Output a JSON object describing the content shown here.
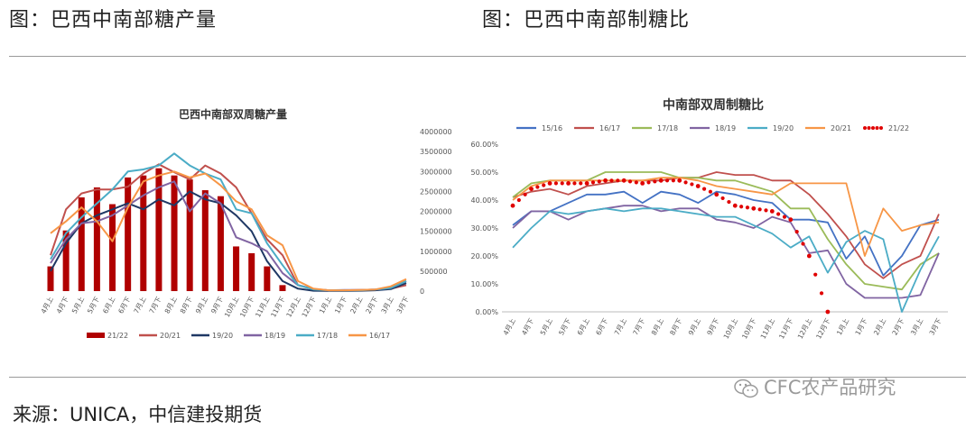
{
  "headings": {
    "left": "图：巴西中南部糖产量",
    "right": "图：巴西中南部制糖比"
  },
  "source": "来源：UNICA，中信建投期货",
  "watermark": "CFC农产品研究",
  "chart_data": [
    {
      "type": "bar+line",
      "title": "巴西中南部双周糖产量",
      "categories": [
        "4月上",
        "4月下",
        "5月上",
        "5月下",
        "6月上",
        "6月下",
        "7月上",
        "7月下",
        "8月上",
        "8月下",
        "9月上",
        "9月下",
        "10月上",
        "10月下",
        "11月上",
        "11月下",
        "12月上",
        "12月下",
        "1月上",
        "1月下",
        "2月上",
        "2月下",
        "3月上",
        "3月下"
      ],
      "yticks": [
        "0",
        "500000",
        "1000000",
        "1500000",
        "2000000",
        "2500000",
        "3000000",
        "3500000",
        "4000000"
      ],
      "ylim": [
        0,
        4000000
      ],
      "legend_position": "bottom",
      "bar_series": {
        "name": "21/22",
        "color": "#b00000",
        "values": [
          620000,
          1520000,
          2350000,
          2600000,
          2180000,
          2850000,
          2900000,
          3080000,
          2900000,
          2800000,
          2530000,
          2380000,
          1120000,
          950000,
          620000,
          150000,
          null,
          null,
          null,
          null,
          null,
          null,
          null,
          null
        ]
      },
      "series": [
        {
          "name": "20/21",
          "color": "#c0504d",
          "values": [
            900000,
            2050000,
            2450000,
            2550000,
            2550000,
            2620000,
            2950000,
            3180000,
            2980000,
            2800000,
            3150000,
            2950000,
            2600000,
            1950000,
            1300000,
            900000,
            150000,
            50000,
            20000,
            20000,
            30000,
            40000,
            60000,
            150000
          ]
        },
        {
          "name": "19/20",
          "color": "#1f3864",
          "values": [
            500000,
            1200000,
            1700000,
            1900000,
            2050000,
            2200000,
            2050000,
            2300000,
            2150000,
            2500000,
            2300000,
            2200000,
            1900000,
            1500000,
            750000,
            250000,
            60000,
            10000,
            5000,
            5000,
            10000,
            20000,
            50000,
            200000
          ]
        },
        {
          "name": "18/19",
          "color": "#8064a2",
          "values": [
            700000,
            1300000,
            1700000,
            1750000,
            1900000,
            2150000,
            2400000,
            2600000,
            2750000,
            2000000,
            2450000,
            2200000,
            1350000,
            1200000,
            1000000,
            450000,
            150000,
            50000,
            20000,
            30000,
            30000,
            40000,
            80000,
            250000
          ]
        },
        {
          "name": "17/18",
          "color": "#4bacc6",
          "values": [
            800000,
            1450000,
            1850000,
            2200000,
            2550000,
            3000000,
            3050000,
            3150000,
            3450000,
            3150000,
            2950000,
            2800000,
            2050000,
            1950000,
            1200000,
            650000,
            150000,
            40000,
            20000,
            20000,
            20000,
            40000,
            80000,
            250000
          ]
        },
        {
          "name": "16/17",
          "color": "#f79646",
          "values": [
            1450000,
            1750000,
            2100000,
            1750000,
            1250000,
            2100000,
            2750000,
            2900000,
            3000000,
            2850000,
            2950000,
            2650000,
            2250000,
            2050000,
            1400000,
            1150000,
            250000,
            60000,
            20000,
            20000,
            30000,
            40000,
            120000,
            300000
          ]
        }
      ]
    },
    {
      "type": "line",
      "title": "中南部双周制糖比",
      "categories": [
        "4月上",
        "4月下",
        "5月上",
        "5月下",
        "6月上",
        "6月下",
        "7月上",
        "7月下",
        "8月上",
        "8月下",
        "9月上",
        "9月下",
        "10月上",
        "10月下",
        "11月上",
        "11月下",
        "12月上",
        "12月下",
        "1月上",
        "1月下",
        "2月上",
        "2月下",
        "3月上",
        "3月下"
      ],
      "yticks": [
        "0.00%",
        "10.00%",
        "20.00%",
        "30.00%",
        "40.00%",
        "50.00%",
        "60.00%"
      ],
      "ylim": [
        0,
        60
      ],
      "legend_position": "top",
      "series": [
        {
          "name": "15/16",
          "color": "#4472c4",
          "values": [
            31,
            36,
            36,
            39,
            42,
            42,
            43,
            39,
            43,
            42,
            39,
            43,
            42,
            40,
            39,
            33,
            33,
            32,
            19,
            27,
            13,
            20,
            31,
            33
          ]
        },
        {
          "name": "16/17",
          "color": "#c0504d",
          "values": [
            41,
            43,
            44,
            42,
            45,
            46,
            47,
            47,
            47,
            48,
            48,
            50,
            49,
            49,
            47,
            47,
            42,
            35,
            27,
            17,
            12,
            17,
            20,
            35
          ]
        },
        {
          "name": "17/18",
          "color": "#9bbb59",
          "values": [
            41,
            46,
            47,
            47,
            47,
            50,
            50,
            50,
            50,
            48,
            48,
            47,
            47,
            45,
            43,
            37,
            37,
            26,
            17,
            10,
            9,
            8,
            17,
            21
          ]
        },
        {
          "name": "18/19",
          "color": "#8064a2",
          "values": [
            30,
            36,
            36,
            33,
            36,
            37,
            38,
            38,
            36,
            37,
            37,
            33,
            32,
            30,
            34,
            32,
            21,
            22,
            10,
            5,
            5,
            5,
            6,
            21
          ]
        },
        {
          "name": "19/20",
          "color": "#4bacc6",
          "values": [
            23,
            30,
            36,
            35,
            36,
            37,
            36,
            37,
            37,
            36,
            35,
            34,
            34,
            31,
            28,
            23,
            27,
            14,
            25,
            29,
            26,
            0,
            15,
            27
          ]
        },
        {
          "name": "20/21",
          "color": "#f79646",
          "values": [
            40,
            45,
            47,
            47,
            47,
            47,
            47,
            47,
            48,
            48,
            47,
            45,
            44,
            43,
            42,
            46,
            46,
            46,
            46,
            20,
            37,
            29,
            31,
            32
          ]
        },
        {
          "name": "21/22",
          "color": "#e00000",
          "dotted": true,
          "values": [
            38,
            44,
            46,
            46,
            46,
            47,
            47,
            46,
            47,
            47,
            45,
            42,
            38,
            37,
            36,
            33,
            20,
            0,
            null,
            null,
            null,
            null,
            null,
            null
          ]
        }
      ]
    }
  ]
}
